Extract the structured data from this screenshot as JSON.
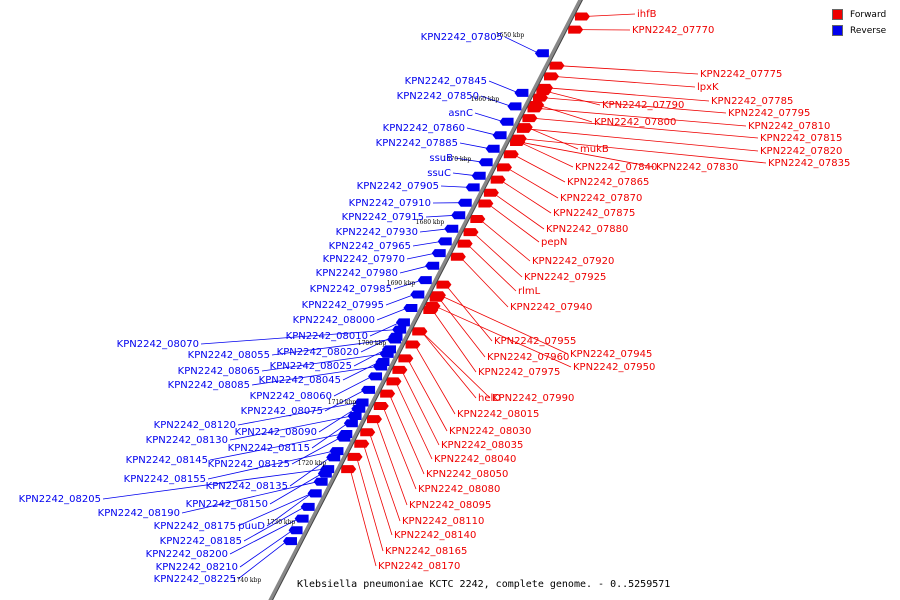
{
  "colors": {
    "forward": "#ee0000",
    "reverse": "#0000ee",
    "backbone": "#888888"
  },
  "legend": [
    {
      "label": "Forward",
      "color": "#ee0000"
    },
    {
      "label": "Reverse",
      "color": "#0000ee"
    }
  ],
  "caption": "Klebsiella pneumoniae KCTC 2242, complete genome. - 0..5259571",
  "scale_ticks": [
    "1650 kbp",
    "1660 kbp",
    "1670 kbp",
    "1680 kbp",
    "1690 kbp",
    "1700 kbp",
    "1710 kbp",
    "1720 kbp",
    "1730 kbp",
    "1740 kbp"
  ],
  "forward_labels": [
    "ihfB",
    "KPN2242_07770",
    "KPN2242_07775",
    "lpxK",
    "KPN2242_07785",
    "KPN2242_07790",
    "KPN2242_07795",
    "KPN2242_07800",
    "KPN2242_07810",
    "KPN2242_07815",
    "KPN2242_07820",
    "mukB",
    "KPN2242_07835",
    "KPN2242_07840",
    "KPN2242_07830",
    "KPN2242_07865",
    "KPN2242_07870",
    "KPN2242_07875",
    "KPN2242_07880",
    "pepN",
    "KPN2242_07920",
    "KPN2242_07925",
    "rlmL",
    "KPN2242_07940",
    "KPN2242_07955",
    "KPN2242_07945",
    "KPN2242_07960",
    "KPN2242_07950",
    "KPN2242_07975",
    "helD",
    "KPN2242_07990",
    "KPN2242_08015",
    "KPN2242_08030",
    "KPN2242_08035",
    "KPN2242_08040",
    "KPN2242_08050",
    "KPN2242_08080",
    "KPN2242_08095",
    "KPN2242_08110",
    "KPN2242_08140",
    "KPN2242_08165",
    "KPN2242_08170"
  ],
  "reverse_labels": [
    "KPN2242_07805",
    "KPN2242_07845",
    "KPN2242_07850",
    "asnC",
    "KPN2242_07860",
    "KPN2242_07885",
    "ssuB",
    "ssuC",
    "KPN2242_07905",
    "KPN2242_07910",
    "KPN2242_07915",
    "KPN2242_07930",
    "KPN2242_07965",
    "KPN2242_07970",
    "KPN2242_07980",
    "KPN2242_07985",
    "KPN2242_07995",
    "KPN2242_08000",
    "KPN2242_08010",
    "KPN2242_08070",
    "KPN2242_08055",
    "KPN2242_08020",
    "KPN2242_08065",
    "KPN2242_08025",
    "KPN2242_08085",
    "KPN2242_08045",
    "KPN2242_08060",
    "KPN2242_08075",
    "KPN2242_08120",
    "KPN2242_08090",
    "KPN2242_08130",
    "KPN2242_08115",
    "KPN2242_08145",
    "KPN2242_08125",
    "KPN2242_08155",
    "KPN2242_08135",
    "KPN2242_08205",
    "KPN2242_08150",
    "KPN2242_08190",
    "KPN2242_08175",
    "puuD",
    "KPN2242_08185",
    "KPN2242_08200",
    "KPN2242_08210",
    "KPN2242_08225"
  ]
}
